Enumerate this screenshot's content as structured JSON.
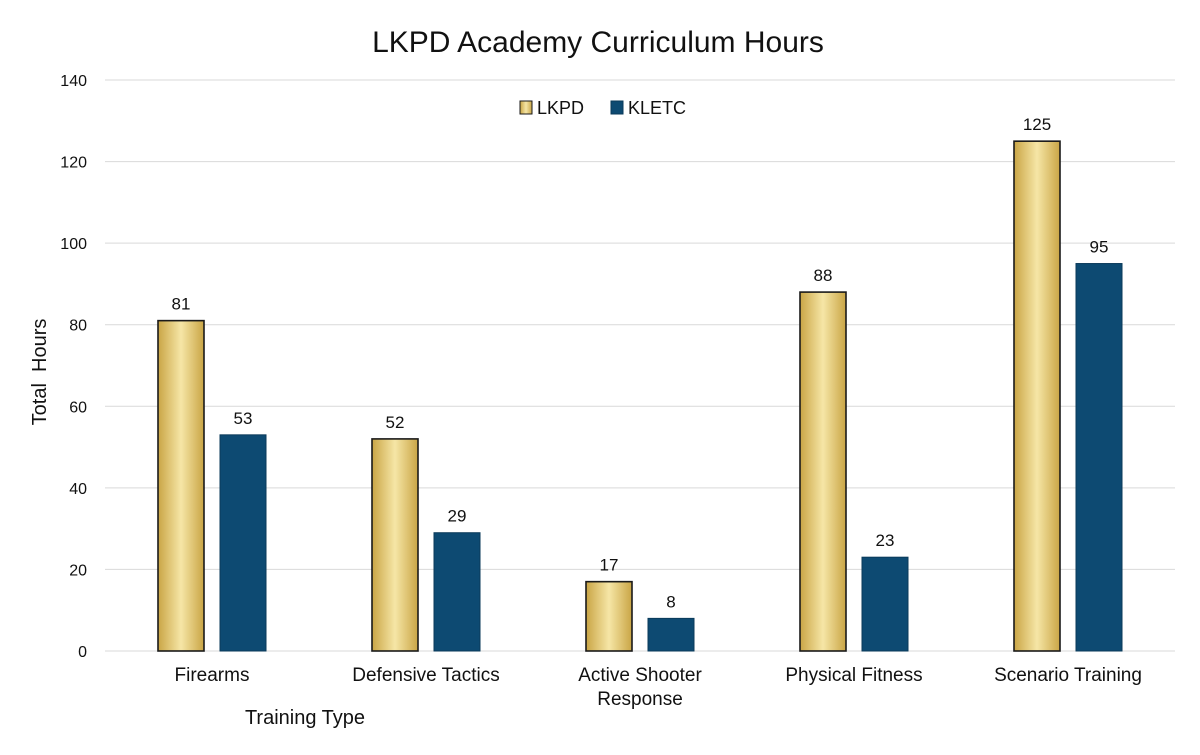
{
  "chart_data": {
    "type": "bar",
    "title": "LKPD Academy Curriculum Hours",
    "xlabel": "Training Type",
    "ylabel": "Total  Hours",
    "ylim": [
      0,
      140
    ],
    "yticks": [
      0,
      20,
      40,
      60,
      80,
      100,
      120,
      140
    ],
    "grid": true,
    "legend_position": "top-center",
    "categories": [
      [
        "Firearms"
      ],
      [
        "Defensive Tactics"
      ],
      [
        "Active Shooter",
        "Response"
      ],
      [
        "Physical Fitness"
      ],
      [
        "Scenario Training"
      ]
    ],
    "series": [
      {
        "name": "LKPD",
        "values": [
          81,
          52,
          17,
          88,
          125
        ],
        "color": "#e6c65e"
      },
      {
        "name": "KLETC",
        "values": [
          53,
          29,
          8,
          23,
          95
        ],
        "color": "#0d4a72"
      }
    ]
  }
}
